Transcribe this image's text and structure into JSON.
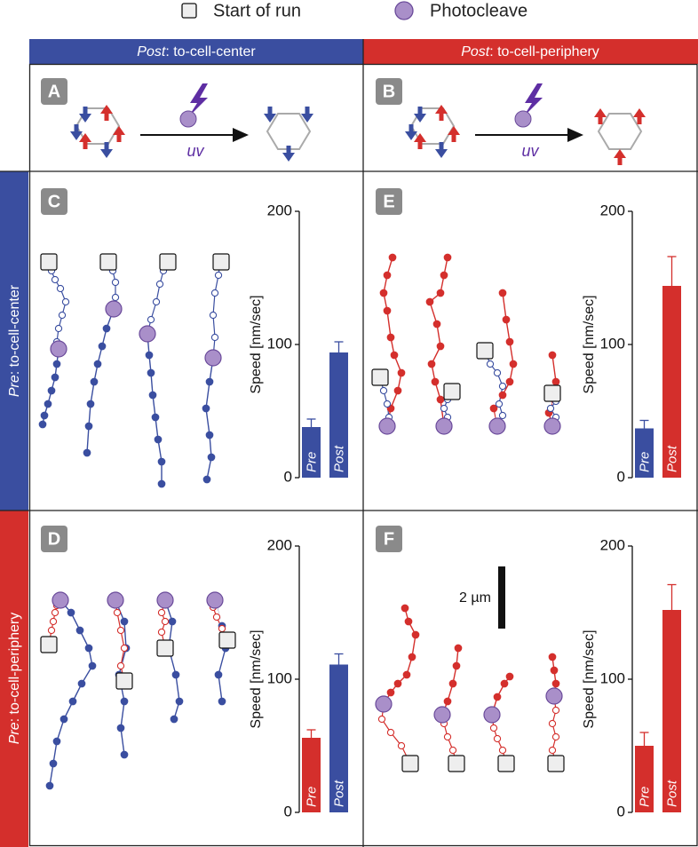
{
  "legend": {
    "start": "Start of run",
    "photocleave": "Photocleave"
  },
  "columns": [
    {
      "prefix": "Post",
      "label": ": to-cell-center"
    },
    {
      "prefix": "Post",
      "label": ": to-cell-periphery"
    }
  ],
  "rows": [
    {
      "prefix": "Pre",
      "label": ": to-cell-center"
    },
    {
      "prefix": "Pre",
      "label": ": to-cell-periphery"
    }
  ],
  "panels": {
    "A": {
      "letter": "A",
      "arrow_label": "uv"
    },
    "B": {
      "letter": "B",
      "arrow_label": "uv"
    }
  },
  "scale_bar": "2 µm",
  "chart_data": [
    {
      "type": "bar",
      "panel": "C",
      "ylabel": "Speed [nm/sec]",
      "categories": [
        "Pre",
        "Post"
      ],
      "values": [
        38,
        94
      ],
      "errors": [
        6,
        8
      ],
      "colors": [
        "#3a4ea0",
        "#3a4ea0"
      ],
      "ylim": [
        0,
        200
      ],
      "yticks": [
        0,
        100,
        200
      ]
    },
    {
      "type": "bar",
      "panel": "E",
      "ylabel": "Speed [nm/sec]",
      "categories": [
        "Pre",
        "Post"
      ],
      "values": [
        37,
        144
      ],
      "errors": [
        6,
        22
      ],
      "colors": [
        "#3a4ea0",
        "#d42f2c"
      ],
      "ylim": [
        0,
        200
      ],
      "yticks": [
        0,
        100,
        200
      ]
    },
    {
      "type": "bar",
      "panel": "D",
      "ylabel": "Speed [nm/sec]",
      "categories": [
        "Pre",
        "Post"
      ],
      "values": [
        56,
        111
      ],
      "errors": [
        6,
        8
      ],
      "colors": [
        "#d42f2c",
        "#3a4ea0"
      ],
      "ylim": [
        0,
        200
      ],
      "yticks": [
        0,
        100,
        200
      ]
    },
    {
      "type": "bar",
      "panel": "F",
      "ylabel": "Speed [nm/sec]",
      "categories": [
        "Pre",
        "Post"
      ],
      "values": [
        50,
        152
      ],
      "errors": [
        10,
        19
      ],
      "colors": [
        "#d42f2c",
        "#d42f2c"
      ],
      "ylim": [
        0,
        200
      ],
      "yticks": [
        0,
        100,
        200
      ]
    }
  ]
}
